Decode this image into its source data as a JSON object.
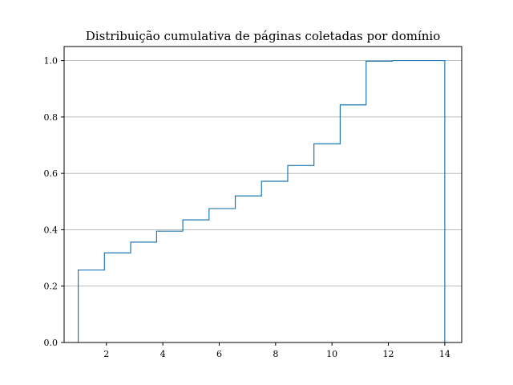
{
  "chart_data": {
    "type": "line",
    "title": "Distribuição cumulativa de páginas coletadas por domínio",
    "xlabel": "",
    "ylabel": "",
    "xlim": [
      0.5,
      14.6
    ],
    "ylim": [
      0.0,
      1.05
    ],
    "xticks": [
      2,
      4,
      6,
      8,
      10,
      12,
      14
    ],
    "yticks": [
      0.0,
      0.2,
      0.4,
      0.6,
      0.8,
      1.0
    ],
    "ytick_labels": [
      "0.0",
      "0.2",
      "0.4",
      "0.6",
      "0.8",
      "1.0"
    ],
    "grid": "y-major",
    "legend": "none",
    "step": "post",
    "series": [
      {
        "x": [
          1.0,
          1.93,
          2.86,
          3.78,
          4.71,
          5.64,
          6.57,
          7.5,
          8.43,
          9.36,
          10.29,
          11.21,
          12.14,
          13.07,
          14.0
        ],
        "y": [
          0.257,
          0.318,
          0.356,
          0.395,
          0.435,
          0.475,
          0.52,
          0.572,
          0.628,
          0.705,
          0.843,
          0.998,
          1.0,
          1.0,
          0.0
        ],
        "color": "#1f77b4"
      }
    ]
  }
}
